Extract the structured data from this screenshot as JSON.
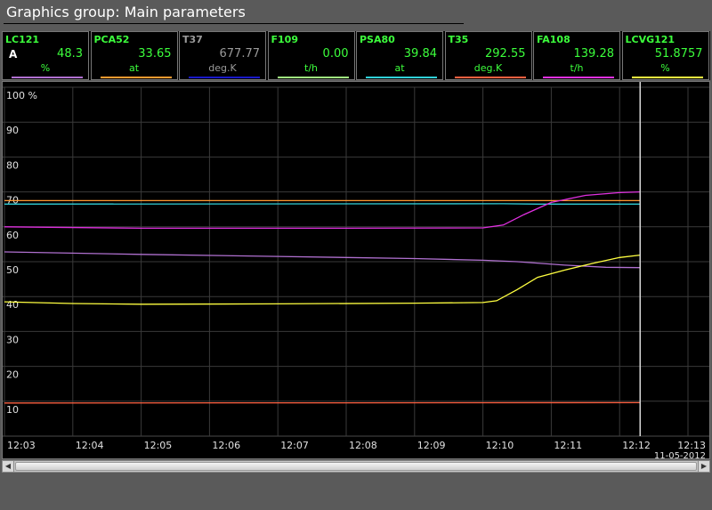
{
  "title": "Graphics group: Main parameters",
  "params": [
    {
      "name": "LC121",
      "flag": "A",
      "value": "48.3",
      "unit": "%",
      "name_color": "#3cff3c",
      "value_color": "#3cff3c",
      "unit_color": "#3cff3c",
      "line_color": "#b070d0"
    },
    {
      "name": "PCA52",
      "flag": "",
      "value": "33.65",
      "unit": "at",
      "name_color": "#3cff3c",
      "value_color": "#3cff3c",
      "unit_color": "#3cff3c",
      "line_color": "#ff9a30"
    },
    {
      "name": "T37",
      "flag": "",
      "value": "677.77",
      "unit": "deg.K",
      "name_color": "#9a9a9a",
      "value_color": "#9a9a9a",
      "unit_color": "#9a9a9a",
      "line_color": "#1818c8"
    },
    {
      "name": "F109",
      "flag": "",
      "value": "0.00",
      "unit": "t/h",
      "name_color": "#3cff3c",
      "value_color": "#3cff3c",
      "unit_color": "#3cff3c",
      "line_color": "#a0f080"
    },
    {
      "name": "PSA80",
      "flag": "",
      "value": "39.84",
      "unit": "at",
      "name_color": "#3cff3c",
      "value_color": "#3cff3c",
      "unit_color": "#3cff3c",
      "line_color": "#30d0d8"
    },
    {
      "name": "T35",
      "flag": "",
      "value": "292.55",
      "unit": "deg.K",
      "name_color": "#3cff3c",
      "value_color": "#3cff3c",
      "unit_color": "#3cff3c",
      "line_color": "#ff6040"
    },
    {
      "name": "FA108",
      "flag": "",
      "value": "139.28",
      "unit": "t/h",
      "name_color": "#3cff3c",
      "value_color": "#3cff3c",
      "unit_color": "#3cff3c",
      "line_color": "#e030e0"
    },
    {
      "name": "LCVG121",
      "flag": "",
      "value": "51.8757",
      "unit": "%",
      "name_color": "#3cff3c",
      "value_color": "#3cff3c",
      "unit_color": "#3cff3c",
      "line_color": "#ffff40"
    }
  ],
  "chart": {
    "y_unit": "%",
    "y_ticks": [
      100,
      90,
      80,
      70,
      60,
      50,
      40,
      30,
      20,
      10
    ],
    "y_range": [
      0,
      100
    ],
    "x_ticks": [
      "12:03",
      "12:04",
      "12:05",
      "12:06",
      "12:07",
      "12:08",
      "12:09",
      "12:10",
      "12:11",
      "12:12",
      "12:13"
    ],
    "date": "11-05-2012",
    "series": [
      {
        "color": "#ff9a30",
        "points": [
          [
            0,
            67.5
          ],
          [
            9.3,
            67.5
          ]
        ]
      },
      {
        "color": "#30d0d8",
        "points": [
          [
            0,
            66.5
          ],
          [
            7.3,
            66.6
          ],
          [
            7.8,
            66.5
          ],
          [
            9.3,
            66.5
          ]
        ]
      },
      {
        "color": "#e030e0",
        "points": [
          [
            0,
            60.0
          ],
          [
            2,
            59.6
          ],
          [
            5,
            59.6
          ],
          [
            7.0,
            59.7
          ],
          [
            7.3,
            60.5
          ],
          [
            7.6,
            63.5
          ],
          [
            8.0,
            67
          ],
          [
            8.5,
            69
          ],
          [
            9.0,
            69.8
          ],
          [
            9.3,
            70.0
          ]
        ]
      },
      {
        "color": "#b070d0",
        "points": [
          [
            0,
            52.8
          ],
          [
            2,
            52.1
          ],
          [
            4,
            51.5
          ],
          [
            6,
            50.9
          ],
          [
            7,
            50.4
          ],
          [
            7.5,
            50.0
          ],
          [
            8.2,
            49.0
          ],
          [
            8.8,
            48.4
          ],
          [
            9.3,
            48.3
          ]
        ]
      },
      {
        "color": "#ffff40",
        "points": [
          [
            0,
            38.5
          ],
          [
            1,
            38.0
          ],
          [
            2,
            37.8
          ],
          [
            4,
            37.9
          ],
          [
            6,
            38.1
          ],
          [
            7,
            38.3
          ],
          [
            7.2,
            38.8
          ],
          [
            7.5,
            42
          ],
          [
            7.8,
            45.5
          ],
          [
            8.2,
            47.6
          ],
          [
            8.6,
            49.5
          ],
          [
            9.0,
            51.2
          ],
          [
            9.3,
            51.9
          ]
        ]
      },
      {
        "color": "#ff6040",
        "points": [
          [
            0,
            9.5
          ],
          [
            9.3,
            9.6
          ]
        ]
      }
    ],
    "cursor_at": 9.3
  }
}
